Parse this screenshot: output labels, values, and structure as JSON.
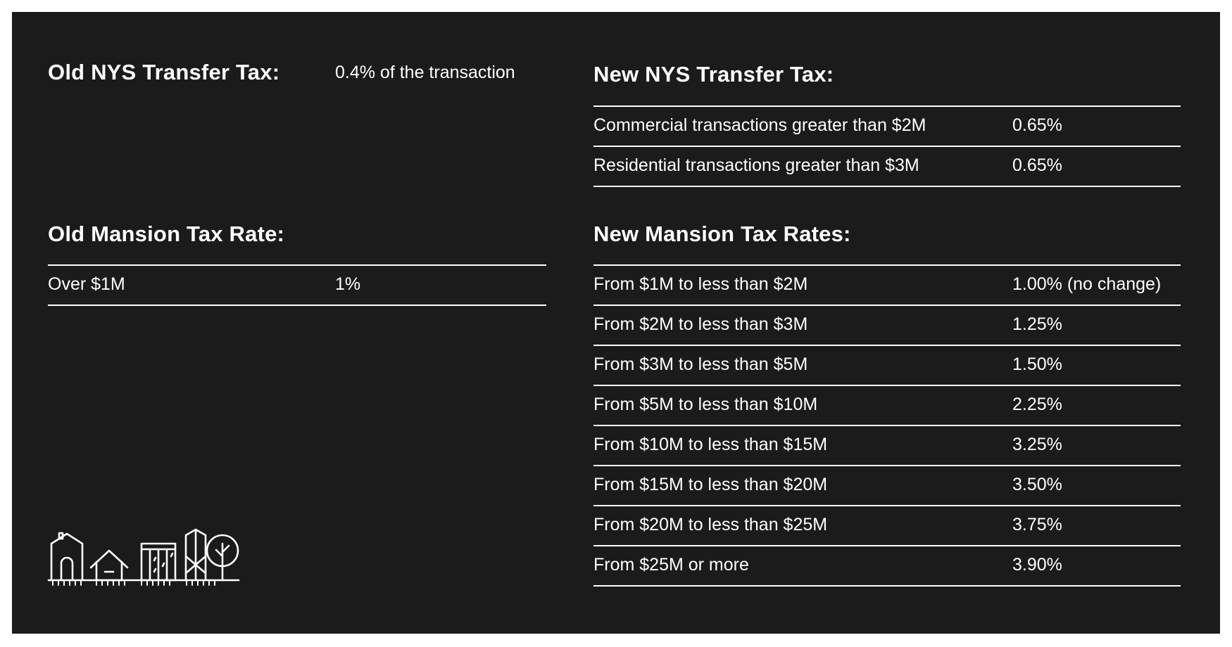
{
  "old_transfer_tax": {
    "heading": "Old NYS Transfer Tax:",
    "value": "0.4% of the transaction"
  },
  "new_transfer_tax": {
    "heading": "New NYS Transfer Tax:",
    "rows": [
      {
        "label": "Commercial transactions greater than $2M",
        "value": "0.65%"
      },
      {
        "label": "Residential transactions greater than $3M",
        "value": "0.65%"
      }
    ]
  },
  "old_mansion_tax": {
    "heading": "Old Mansion Tax Rate:",
    "rows": [
      {
        "label": "Over $1M",
        "value": "1%"
      }
    ]
  },
  "new_mansion_tax": {
    "heading": "New Mansion Tax Rates:",
    "rows": [
      {
        "label": "From $1M to less than $2M",
        "value": "1.00% (no change)"
      },
      {
        "label": "From $2M to less than $3M",
        "value": "1.25%"
      },
      {
        "label": "From $3M to less than $5M",
        "value": "1.50%"
      },
      {
        "label": "From $5M to less than $10M",
        "value": "2.25%"
      },
      {
        "label": "From $10M to less than $15M",
        "value": "3.25%"
      },
      {
        "label": "From $15M to less than $20M",
        "value": "3.50%"
      },
      {
        "label": "From $20M to less than $25M",
        "value": "3.75%"
      },
      {
        "label": "From $25M or more",
        "value": "3.90%"
      }
    ]
  },
  "icons": {
    "illustration": "city-buildings-and-tree-icon"
  },
  "colors": {
    "background": "#1b1b1b",
    "text": "#ffffff",
    "rule": "#ffffff"
  }
}
